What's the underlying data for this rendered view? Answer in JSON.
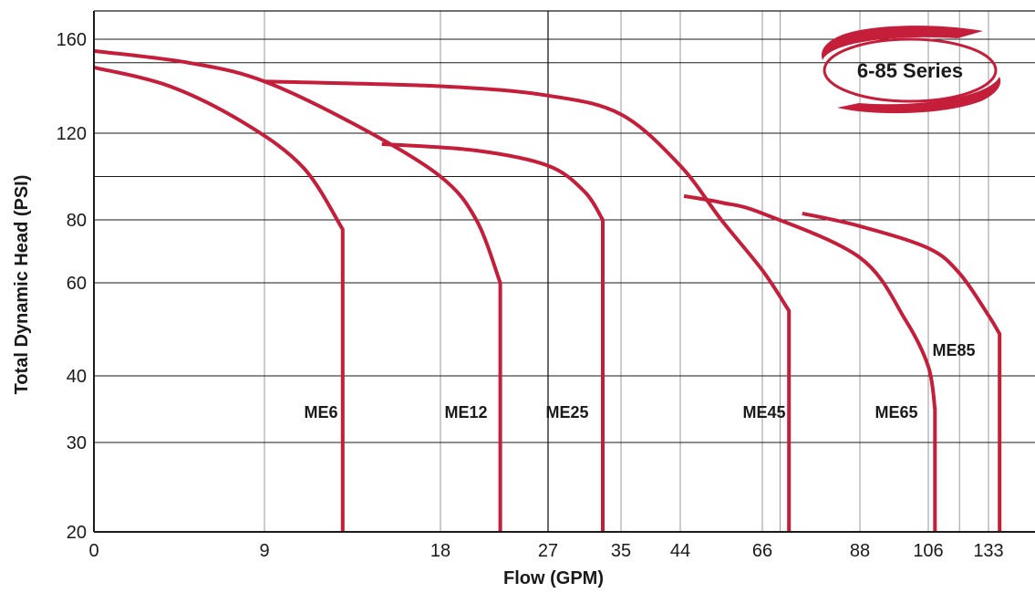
{
  "chart_data": {
    "type": "line",
    "title": "",
    "badge": "6-85 Series",
    "xlabel": "Flow (GPM)",
    "ylabel": "Total Dynamic Head (PSI)",
    "x_ticks": [
      "0",
      "9",
      "18",
      "27",
      "35",
      "44",
      "66",
      "88",
      "106",
      "133"
    ],
    "y_ticks": [
      20,
      30,
      40,
      60,
      80,
      120,
      160
    ],
    "grid": true,
    "colors": {
      "curve": "#c41e3a",
      "grid": "#999999",
      "grid_major": "#1a1a1a",
      "axis": "#1a1a1a"
    },
    "series": [
      {
        "name": "ME6",
        "head_at_zero_flow": 148,
        "shutoff_flow": 13,
        "cutoff_head": 77,
        "points": [
          [
            0,
            148
          ],
          [
            4,
            140
          ],
          [
            8,
            124
          ],
          [
            11,
            104
          ],
          [
            13,
            77
          ],
          [
            13,
            20
          ]
        ]
      },
      {
        "name": "ME12",
        "head_at_zero_flow": 155,
        "shutoff_flow": 23,
        "cutoff_head": 60,
        "points": [
          [
            0,
            155
          ],
          [
            5,
            150
          ],
          [
            9,
            142
          ],
          [
            14,
            122
          ],
          [
            18,
            100
          ],
          [
            21,
            80
          ],
          [
            23,
            60
          ],
          [
            23,
            20
          ]
        ]
      },
      {
        "name": "ME25",
        "head_at_zero_flow": 115,
        "shutoff_flow": 33,
        "cutoff_head": 80,
        "points": [
          [
            15,
            115
          ],
          [
            21,
            112
          ],
          [
            27,
            105
          ],
          [
            31,
            93
          ],
          [
            33,
            80
          ],
          [
            33,
            20
          ]
        ]
      },
      {
        "name": "ME45",
        "head_at_zero_flow": 142,
        "shutoff_flow": 72,
        "cutoff_head": 54,
        "points": [
          [
            9,
            142
          ],
          [
            18,
            140
          ],
          [
            27,
            136
          ],
          [
            35,
            128
          ],
          [
            44,
            105
          ],
          [
            55,
            80
          ],
          [
            66,
            64
          ],
          [
            72,
            54
          ],
          [
            72,
            20
          ]
        ]
      },
      {
        "name": "ME65",
        "head_at_zero_flow": 91,
        "shutoff_flow": 109,
        "cutoff_head": 35,
        "points": [
          [
            45,
            91
          ],
          [
            55,
            88
          ],
          [
            66,
            83
          ],
          [
            88,
            68
          ],
          [
            100,
            52
          ],
          [
            106,
            42
          ],
          [
            109,
            35
          ],
          [
            109,
            20
          ]
        ]
      },
      {
        "name": "ME85",
        "head_at_zero_flow": 83,
        "shutoff_flow": 138,
        "cutoff_head": 49,
        "points": [
          [
            75,
            83
          ],
          [
            88,
            78
          ],
          [
            106,
            71
          ],
          [
            120,
            63
          ],
          [
            133,
            53
          ],
          [
            138,
            49
          ],
          [
            138,
            20
          ]
        ]
      }
    ]
  }
}
